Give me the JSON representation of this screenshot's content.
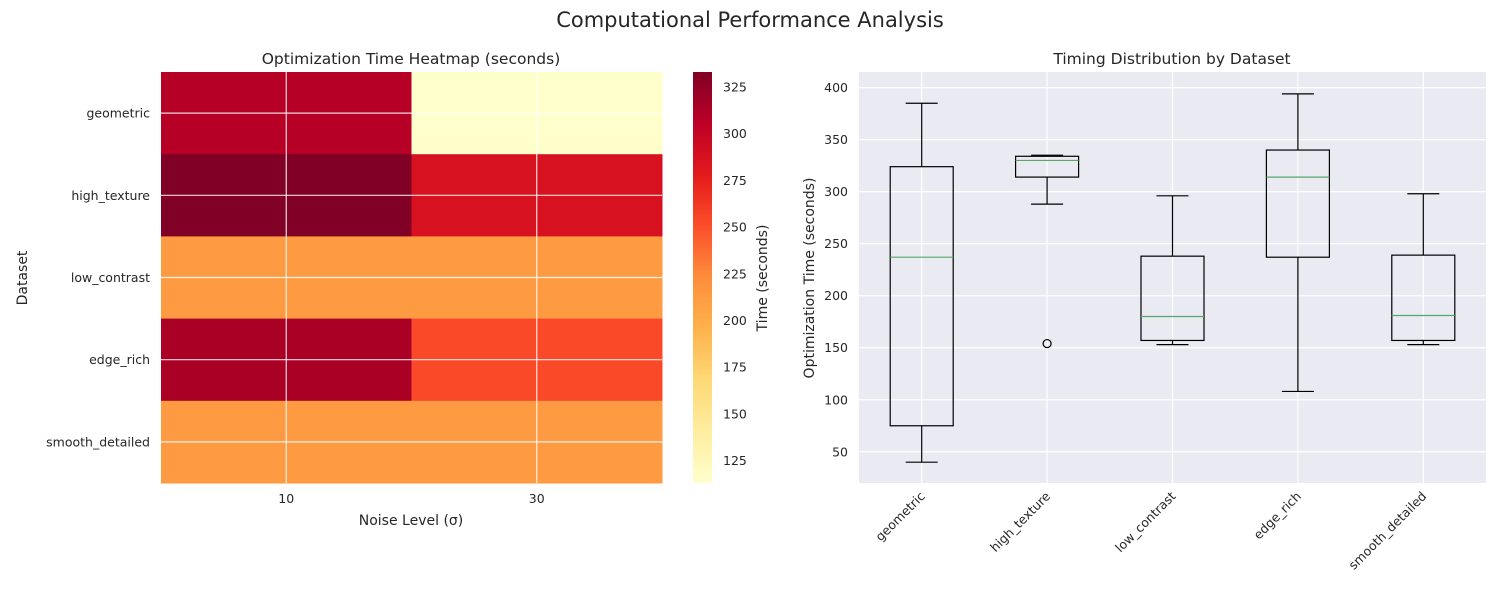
{
  "figure": {
    "title": "Computational Performance Analysis"
  },
  "chart_data": [
    {
      "type": "heatmap",
      "title": "Optimization Time Heatmap (seconds)",
      "xlabel": "Noise Level (σ)",
      "ylabel": "Dataset",
      "x_categories": [
        "10",
        "30"
      ],
      "y_categories": [
        "geometric",
        "high_texture",
        "low_contrast",
        "edge_rich",
        "smooth_detailed"
      ],
      "values": [
        [
          308,
          113
        ],
        [
          333,
          287
        ],
        [
          213,
          213
        ],
        [
          314,
          253
        ],
        [
          213,
          213
        ]
      ],
      "colorbar": {
        "label": "Time (seconds)",
        "range": [
          113,
          333
        ],
        "ticks": [
          125,
          150,
          175,
          200,
          225,
          250,
          275,
          300,
          325
        ],
        "colormap": "YlOrRd"
      },
      "grid": true
    },
    {
      "type": "box",
      "title": "Timing Distribution by Dataset",
      "xlabel": "",
      "ylabel": "Optimization Time (seconds)",
      "ylim": [
        20,
        415
      ],
      "yticks": [
        50,
        100,
        150,
        200,
        250,
        300,
        350,
        400
      ],
      "categories": [
        "geometric",
        "high_texture",
        "low_contrast",
        "edge_rich",
        "smooth_detailed"
      ],
      "boxes": [
        {
          "whisker_low": 40,
          "q1": 75,
          "median": 237,
          "q3": 324,
          "whisker_high": 385,
          "outliers": []
        },
        {
          "whisker_low": 288,
          "q1": 314,
          "median": 330,
          "q3": 334,
          "whisker_high": 335,
          "outliers": [
            154
          ]
        },
        {
          "whisker_low": 153,
          "q1": 157,
          "median": 180,
          "q3": 238,
          "whisker_high": 296,
          "outliers": []
        },
        {
          "whisker_low": 108,
          "q1": 237,
          "median": 314,
          "q3": 340,
          "whisker_high": 394,
          "outliers": []
        },
        {
          "whisker_low": 153,
          "q1": 157,
          "median": 181,
          "q3": 239,
          "whisker_high": 298,
          "outliers": []
        }
      ],
      "background": "#eaeaf2",
      "median_color": "#55a868",
      "grid": true
    }
  ]
}
